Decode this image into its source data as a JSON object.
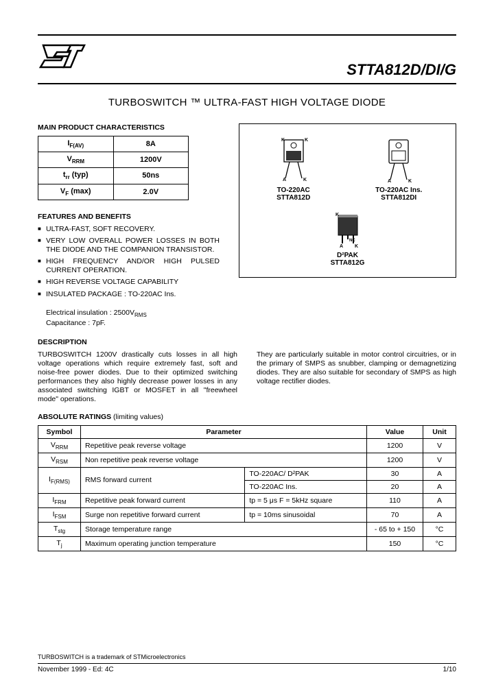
{
  "header": {
    "logo_text": "ST",
    "part_number": "STTA812D/DI/G"
  },
  "title": "TURBOSWITCH ™ ULTRA-FAST HIGH VOLTAGE DIODE",
  "sections": {
    "main_char": "MAIN PRODUCT CHARACTERISTICS",
    "features": "FEATURES AND BENEFITS",
    "description": "DESCRIPTION",
    "abs_ratings": "ABSOLUTE RATINGS",
    "abs_ratings_sub": " (limiting values)"
  },
  "char_table": {
    "rows": [
      {
        "param": "I",
        "sub": "F(AV)",
        "value": "8A"
      },
      {
        "param": "V",
        "sub": "RRM",
        "value": "1200V"
      },
      {
        "param": "t",
        "sub": "rr",
        "suffix": " (typ)",
        "value": "50ns"
      },
      {
        "param": "V",
        "sub": "F",
        "suffix": " (max)",
        "value": "2.0V"
      }
    ]
  },
  "features_list": [
    "ULTRA-FAST, SOFT RECOVERY.",
    "VERY LOW OVERALL POWER LOSSES IN BOTH THE DIODE AND THE COMPANION TRANSISTOR.",
    "HIGH FREQUENCY AND/OR HIGH PULSED CURRENT OPERATION.",
    "HIGH REVERSE VOLTAGE CAPABILITY",
    "INSULATED PACKAGE : TO-220AC Ins."
  ],
  "insul_detail1": "Electrical insulation : 2500V",
  "insul_detail1_sub": "RMS",
  "insul_detail2": "Capacitance : 7pF.",
  "packages": {
    "p1_line1": "TO-220AC",
    "p1_line2": "STTA812D",
    "p2_line1": "TO-220AC Ins.",
    "p2_line2": "STTA812DI",
    "p3_line1": "D²PAK",
    "p3_line2": "STTA812G"
  },
  "description_p1": "TURBOSWITCH 1200V drastically cuts losses in all high voltage operations which require extremely fast, soft and noise-free power diodes. Due to their optimized switching performances they also highly decrease power losses in any associated switching IGBT or MOSFET in all \"freewheel mode\" operations.",
  "description_p2": "They are particularly suitable in motor control circuitries, or in the primary of SMPS as snubber, clamping or demagnetizing diodes. They are also suitable for secondary of SMPS as high voltage rectifier diodes.",
  "abs_table": {
    "headers": {
      "symbol": "Symbol",
      "parameter": "Parameter",
      "value": "Value",
      "unit": "Unit"
    },
    "rows": [
      {
        "sym": "V",
        "sub": "RRM",
        "param": "Repetitive peak reverse voltage",
        "cond": "",
        "val": "1200",
        "unit": "V"
      },
      {
        "sym": "V",
        "sub": "RSM",
        "param": "Non repetitive peak reverse voltage",
        "cond": "",
        "val": "1200",
        "unit": "V"
      },
      {
        "sym": "I",
        "sub": "F(RMS)",
        "param": "RMS forward current",
        "cond": "TO-220AC/ D²PAK",
        "val": "30",
        "unit": "A",
        "rowspan": true
      },
      {
        "sym": "",
        "sub": "",
        "param": "",
        "cond": "TO-220AC Ins.",
        "val": "20",
        "unit": "A"
      },
      {
        "sym": "I",
        "sub": "FRM",
        "param": "Repetitive peak forward current",
        "cond": "tp = 5 μs F = 5kHz square",
        "val": "110",
        "unit": "A"
      },
      {
        "sym": "I",
        "sub": "FSM",
        "param": "Surge non repetitive forward current",
        "cond": "tp = 10ms  sinusoidal",
        "val": "70",
        "unit": "A"
      },
      {
        "sym": "T",
        "sub": "stg",
        "param": "Storage temperature range",
        "cond": "",
        "val": "- 65 to + 150",
        "unit": "°C"
      },
      {
        "sym": "T",
        "sub": "j",
        "param": "Maximum operating junction temperature",
        "cond": "",
        "val": "150",
        "unit": "°C"
      }
    ]
  },
  "footer": {
    "trademark": "TURBOSWITCH is a trademark of STMicroelectronics",
    "date": "November 1999 - Ed: 4C",
    "page": "1/10"
  }
}
